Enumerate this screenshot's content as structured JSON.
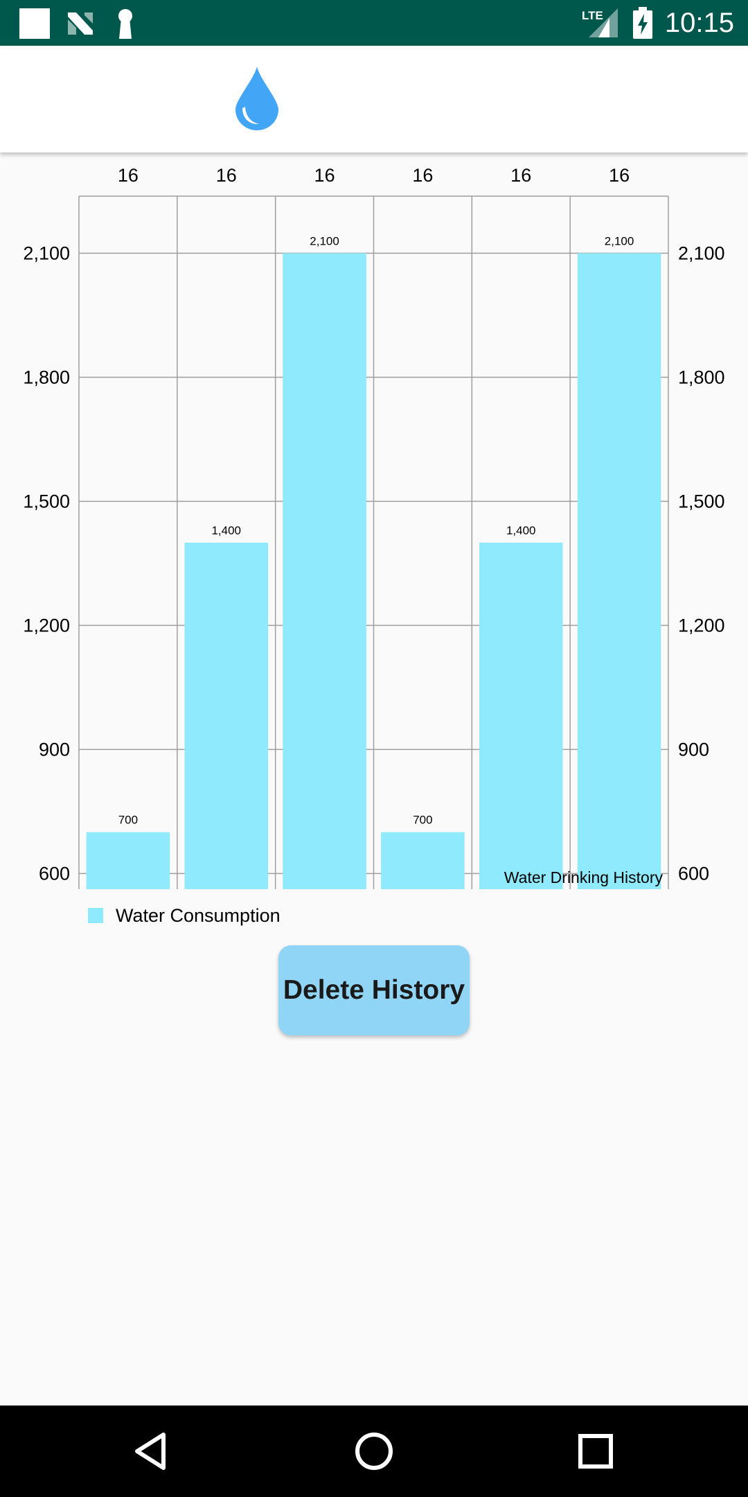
{
  "status_bar": {
    "time": "10:15",
    "network": "LTE",
    "icons": [
      "square-notification-icon",
      "n-logo-icon",
      "keyhole-icon",
      "lte-signal-icon",
      "battery-charging-icon"
    ],
    "background": "#00574b"
  },
  "app_bar": {
    "icon": "water-drop-icon",
    "icon_color": "#42a5f5"
  },
  "chart_data": {
    "type": "bar",
    "categories": [
      "16",
      "16",
      "16",
      "16",
      "16",
      "16"
    ],
    "series": [
      {
        "name": "Water Consumption",
        "values": [
          700,
          1400,
          2100,
          700,
          1400,
          2100
        ],
        "color": "#8eeafc"
      }
    ],
    "value_labels": [
      "700",
      "1,400",
      "2,100",
      "700",
      "1,400",
      "2,100"
    ],
    "y_ticks": [
      600,
      900,
      1200,
      1500,
      1800,
      2100
    ],
    "y_tick_labels": [
      "600",
      "900",
      "1,200",
      "1,500",
      "1,800",
      "2,100"
    ],
    "ylim": [
      562,
      2238
    ],
    "description": "Water Drinking History",
    "x_axis_position": "top",
    "y_axis": "both sides",
    "grid": true,
    "legend": "bottom-left"
  },
  "actions": {
    "delete_history_label": "Delete History",
    "button_color": "#90d5f5"
  },
  "nav_bar": {
    "icons": [
      "back-icon",
      "home-icon",
      "recents-icon"
    ]
  }
}
